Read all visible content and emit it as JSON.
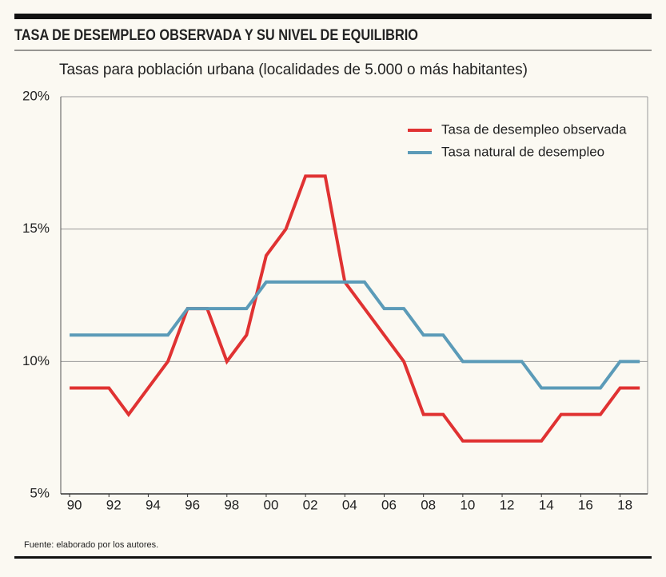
{
  "chart_data": {
    "type": "line",
    "title": "TASA DE DESEMPLEO OBSERVADA Y SU NIVEL DE EQUILIBRIO",
    "subtitle": "Tasas para población urbana (localidades de 5.000 o más habitantes)",
    "source": "Fuente: elaborado por los autores.",
    "x": [
      1990,
      1991,
      1992,
      1993,
      1994,
      1995,
      1996,
      1997,
      1998,
      1999,
      2000,
      2001,
      2002,
      2003,
      2004,
      2005,
      2006,
      2007,
      2008,
      2009,
      2010,
      2011,
      2012,
      2013,
      2014,
      2015,
      2016,
      2017,
      2018,
      2019
    ],
    "series": [
      {
        "name": "Tasa de desempleo observada",
        "color": "#e03232",
        "values": [
          9,
          9,
          9,
          8,
          9,
          10,
          12,
          12,
          10,
          11,
          14,
          15,
          17,
          17,
          13,
          12,
          11,
          10,
          8,
          8,
          7,
          7,
          7,
          7,
          7,
          8,
          8,
          8,
          9,
          9
        ]
      },
      {
        "name": "Tasa natural de desempleo",
        "color": "#5b9bb8",
        "values": [
          11,
          11,
          11,
          11,
          11,
          11,
          12,
          12,
          12,
          12,
          13,
          13,
          13,
          13,
          13,
          13,
          12,
          12,
          11,
          11,
          10,
          10,
          10,
          10,
          9,
          9,
          9,
          9,
          10,
          10
        ]
      }
    ],
    "xlim": [
      1989.55,
      2019.4
    ],
    "xticks": [
      {
        "value": 1990,
        "label": "90"
      },
      {
        "value": 1992,
        "label": "92"
      },
      {
        "value": 1994,
        "label": "94"
      },
      {
        "value": 1996,
        "label": "96"
      },
      {
        "value": 1998,
        "label": "98"
      },
      {
        "value": 2000,
        "label": "00"
      },
      {
        "value": 2002,
        "label": "02"
      },
      {
        "value": 2004,
        "label": "04"
      },
      {
        "value": 2006,
        "label": "06"
      },
      {
        "value": 2008,
        "label": "08"
      },
      {
        "value": 2010,
        "label": "10"
      },
      {
        "value": 2012,
        "label": "12"
      },
      {
        "value": 2014,
        "label": "14"
      },
      {
        "value": 2016,
        "label": "16"
      },
      {
        "value": 2018,
        "label": "18"
      }
    ],
    "ylim": [
      5,
      20
    ],
    "yticks": [
      {
        "value": 5,
        "label": "5%"
      },
      {
        "value": 10,
        "label": "10%"
      },
      {
        "value": 15,
        "label": "15%"
      },
      {
        "value": 20,
        "label": "20%"
      }
    ],
    "grid": true
  }
}
